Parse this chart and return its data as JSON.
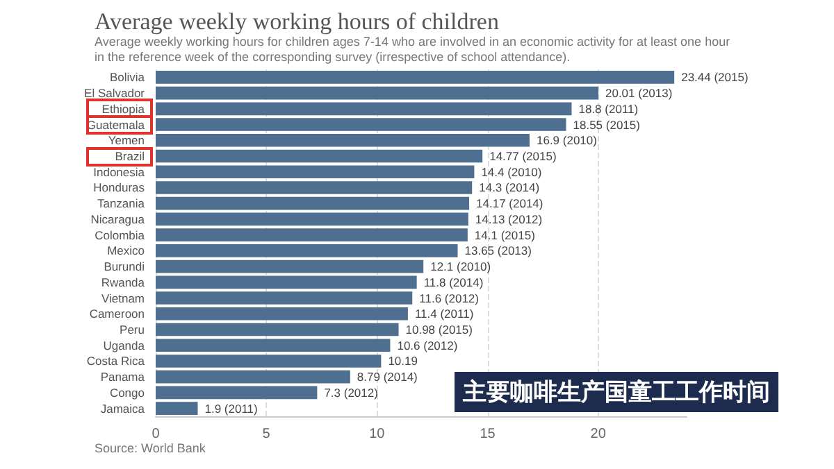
{
  "chart_data": {
    "type": "bar",
    "orientation": "horizontal",
    "title": "Average weekly working hours of children",
    "subtitle": "Average weekly working hours for children ages 7-14 who are involved in an economic activity for at least one hour in the reference week of the corresponding survey (irrespective of school attendance).",
    "categories": [
      "Bolivia",
      "El Salvador",
      "Ethiopia",
      "Guatemala",
      "Yemen",
      "Brazil",
      "Indonesia",
      "Honduras",
      "Tanzania",
      "Nicaragua",
      "Colombia",
      "Mexico",
      "Burundi",
      "Rwanda",
      "Vietnam",
      "Cameroon",
      "Peru",
      "Uganda",
      "Costa Rica",
      "Panama",
      "Congo",
      "Jamaica"
    ],
    "values": [
      23.44,
      20.01,
      18.8,
      18.55,
      16.9,
      14.77,
      14.4,
      14.3,
      14.17,
      14.13,
      14.1,
      13.65,
      12.1,
      11.8,
      11.6,
      11.4,
      10.98,
      10.6,
      10.19,
      8.79,
      7.3,
      1.9
    ],
    "value_labels": [
      "23.44 (2015)",
      "20.01 (2013)",
      "18.8 (2011)",
      "18.55 (2015)",
      "16.9 (2010)",
      "14.77 (2015)",
      "14.4 (2010)",
      "14.3 (2014)",
      "14.17 (2014)",
      "14.13 (2012)",
      "14.1 (2015)",
      "13.65 (2013)",
      "12.1 (2010)",
      "11.8 (2014)",
      "11.6 (2012)",
      "11.4 (2011)",
      "10.98 (2015)",
      "10.6 (2012)",
      "10.19",
      "8.79 (2014)",
      "7.3 (2012)",
      "1.9 (2011)"
    ],
    "color": "#4e6f8f",
    "xlim": [
      0,
      24
    ],
    "xticks": [
      0,
      5,
      10,
      15,
      20
    ],
    "grid": "x",
    "annotations": [
      "Source: World Bank",
      "主要咖啡生产国童工工作时间"
    ]
  }
}
